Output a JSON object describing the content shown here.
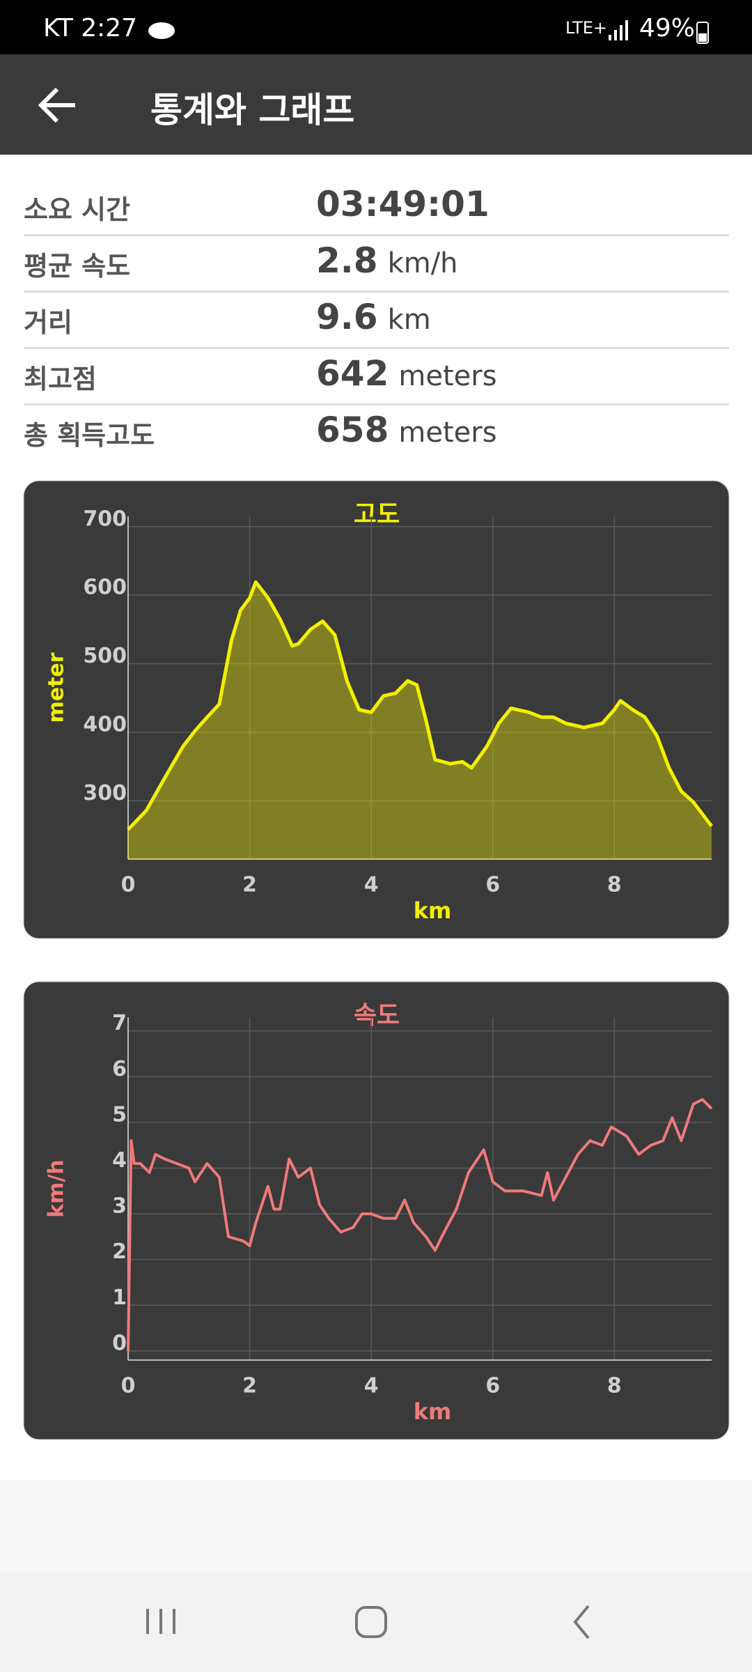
{
  "status_bar": {
    "carrier_time": "KT 2:27",
    "network": "LTE+",
    "battery": "49%"
  },
  "header": {
    "title": "통계와 그래프"
  },
  "stats": [
    {
      "label": "소요 시간",
      "value": "03:49:01"
    },
    {
      "label": "평균 속도",
      "value": "2.8",
      "unit": "km/h"
    },
    {
      "label": "거리",
      "value": "9.6",
      "unit": "km"
    },
    {
      "label": "최고점",
      "value": "642",
      "unit": "meters"
    },
    {
      "label": "총 획득고도",
      "value": "658",
      "unit": "meters"
    }
  ],
  "chart_data": [
    {
      "type": "area",
      "title": "고도",
      "x_label": "km",
      "y_label": "meter",
      "x": [
        0,
        0.3,
        0.6,
        0.9,
        1.1,
        1.3,
        1.5,
        1.7,
        1.85,
        2.0,
        2.1,
        2.3,
        2.5,
        2.7,
        2.8,
        3.0,
        3.2,
        3.4,
        3.6,
        3.8,
        4.0,
        4.2,
        4.4,
        4.6,
        4.75,
        4.9,
        5.05,
        5.3,
        5.5,
        5.65,
        5.9,
        6.1,
        6.3,
        6.6,
        6.8,
        7.0,
        7.2,
        7.5,
        7.8,
        8.0,
        8.1,
        8.3,
        8.5,
        8.7,
        8.9,
        9.1,
        9.3,
        9.6
      ],
      "series": [
        {
          "color": "#f2f000",
          "values": [
            258,
            286,
            333,
            379,
            402,
            422,
            441,
            534,
            578,
            596,
            619,
            596,
            565,
            526,
            529,
            550,
            562,
            542,
            475,
            433,
            429,
            453,
            457,
            475,
            469,
            418,
            360,
            354,
            357,
            348,
            379,
            413,
            435,
            429,
            422,
            422,
            413,
            407,
            413,
            433,
            446,
            433,
            422,
            395,
            348,
            314,
            298,
            263
          ]
        }
      ],
      "xlim": [
        0,
        9.6
      ],
      "ylim": [
        215,
        715
      ],
      "xticks": [
        0,
        2,
        4,
        6,
        8
      ],
      "yticks": [
        300,
        400,
        500,
        600,
        700
      ],
      "grid": true
    },
    {
      "type": "line",
      "title": "속도",
      "x_label": "km",
      "y_label": "km/h",
      "x": [
        0,
        0.05,
        0.1,
        0.2,
        0.35,
        0.45,
        0.6,
        0.8,
        1.0,
        1.1,
        1.3,
        1.5,
        1.65,
        1.9,
        2.0,
        2.1,
        2.3,
        2.4,
        2.5,
        2.65,
        2.8,
        3.0,
        3.15,
        3.3,
        3.5,
        3.7,
        3.85,
        4.0,
        4.2,
        4.4,
        4.55,
        4.7,
        4.9,
        5.05,
        5.2,
        5.4,
        5.6,
        5.85,
        6.0,
        6.2,
        6.5,
        6.8,
        6.9,
        7.0,
        7.2,
        7.4,
        7.6,
        7.8,
        7.95,
        8.2,
        8.4,
        8.6,
        8.8,
        8.95,
        9.1,
        9.3,
        9.45,
        9.6
      ],
      "series": [
        {
          "color": "#ef7a7a",
          "values": [
            0,
            4.6,
            4.1,
            4.1,
            3.9,
            4.3,
            4.2,
            4.1,
            4.0,
            3.7,
            4.1,
            3.8,
            2.5,
            2.4,
            2.3,
            2.8,
            3.6,
            3.1,
            3.1,
            4.2,
            3.8,
            4.0,
            3.2,
            2.9,
            2.6,
            2.7,
            3.0,
            3.0,
            2.9,
            2.9,
            3.3,
            2.8,
            2.5,
            2.2,
            2.6,
            3.1,
            3.9,
            4.4,
            3.7,
            3.5,
            3.5,
            3.4,
            3.9,
            3.3,
            3.8,
            4.3,
            4.6,
            4.5,
            4.9,
            4.7,
            4.3,
            4.5,
            4.6,
            5.1,
            4.6,
            5.4,
            5.5,
            5.3
          ]
        }
      ],
      "xlim": [
        0,
        9.6
      ],
      "ylim": [
        -0.2,
        7.3
      ],
      "xticks": [
        0,
        2,
        4,
        6,
        8
      ],
      "yticks": [
        0,
        1,
        2,
        3,
        4,
        5,
        6,
        7
      ],
      "grid": true
    }
  ]
}
